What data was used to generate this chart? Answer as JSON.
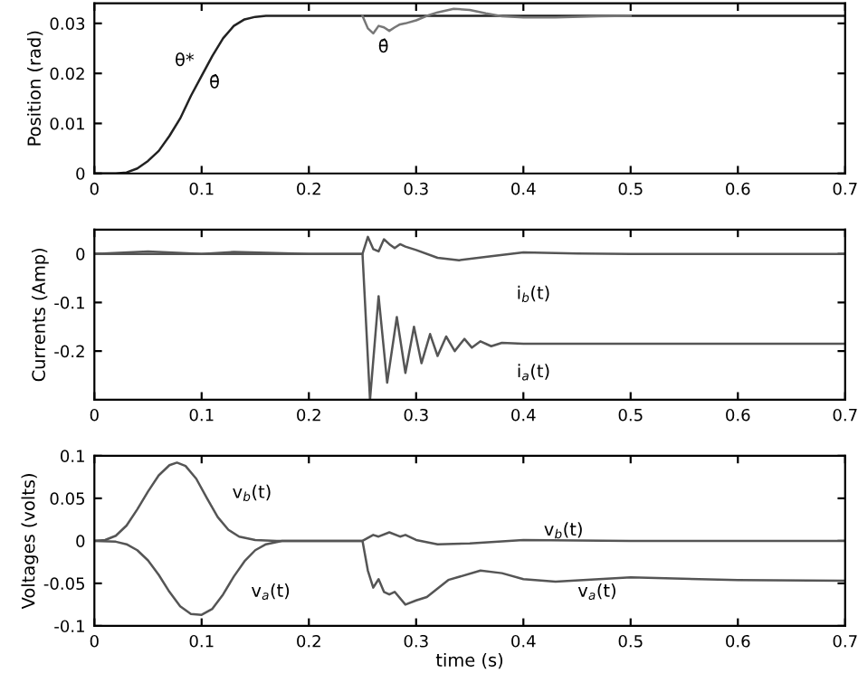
{
  "chart_data": [
    {
      "type": "line",
      "ylabel": "Position (rad)",
      "xlim": [
        0,
        0.7
      ],
      "xticks": [
        0,
        0.1,
        0.2,
        0.3,
        0.4,
        0.5,
        0.6,
        0.7
      ],
      "ylim": [
        0,
        0.034
      ],
      "yticks": [
        0,
        0.01,
        0.02,
        0.03
      ],
      "grid": false,
      "legend": false,
      "series": [
        {
          "color": "#222222",
          "x": [
            0,
            0.02,
            0.03,
            0.04,
            0.05,
            0.06,
            0.07,
            0.08,
            0.09,
            0.1,
            0.11,
            0.12,
            0.13,
            0.14,
            0.15,
            0.16,
            0.18,
            0.2,
            0.3,
            0.4,
            0.5,
            0.6,
            0.7
          ],
          "values": [
            0,
            0,
            0.0002,
            0.001,
            0.0025,
            0.0045,
            0.0075,
            0.011,
            0.0155,
            0.0195,
            0.0235,
            0.027,
            0.0295,
            0.0308,
            0.0313,
            0.0315,
            0.0315,
            0.0315,
            0.0315,
            0.0315,
            0.0315,
            0.0315,
            0.0315
          ]
        },
        {
          "color": "#777777",
          "x": [
            0.25,
            0.255,
            0.26,
            0.265,
            0.27,
            0.275,
            0.28,
            0.285,
            0.29,
            0.3,
            0.31,
            0.32,
            0.335,
            0.35,
            0.365,
            0.38,
            0.4,
            0.43,
            0.47,
            0.5
          ],
          "values": [
            0.0315,
            0.029,
            0.028,
            0.0295,
            0.0292,
            0.0285,
            0.0292,
            0.0298,
            0.03,
            0.0306,
            0.0315,
            0.0322,
            0.0329,
            0.0327,
            0.032,
            0.0314,
            0.0312,
            0.0312,
            0.0314,
            0.0315
          ]
        }
      ],
      "annotations": [
        "θ*",
        "θ̂",
        "θ̂"
      ]
    },
    {
      "type": "line",
      "ylabel": "Currents (Amp)",
      "xlim": [
        0,
        0.7
      ],
      "xticks": [
        0,
        0.1,
        0.2,
        0.3,
        0.4,
        0.5,
        0.6,
        0.7
      ],
      "ylim": [
        -0.3,
        0.05
      ],
      "yticks": [
        -0.2,
        -0.1,
        0
      ],
      "grid": false,
      "legend": false,
      "series": [
        {
          "color": "#555555",
          "x": [
            0,
            0.05,
            0.1,
            0.13,
            0.2,
            0.25,
            0.255,
            0.26,
            0.265,
            0.27,
            0.275,
            0.28,
            0.285,
            0.29,
            0.3,
            0.32,
            0.34,
            0.37,
            0.4,
            0.45,
            0.5,
            0.6,
            0.7
          ],
          "values": [
            0,
            0.005,
            0,
            0.004,
            0,
            0,
            0.035,
            0.01,
            0.005,
            0.03,
            0.02,
            0.012,
            0.02,
            0.015,
            0.008,
            -0.008,
            -0.013,
            -0.005,
            0.003,
            0.001,
            0,
            0,
            0
          ]
        },
        {
          "color": "#555555",
          "x": [
            0,
            0.25,
            0.257,
            0.265,
            0.273,
            0.282,
            0.29,
            0.298,
            0.305,
            0.313,
            0.32,
            0.328,
            0.336,
            0.345,
            0.352,
            0.36,
            0.37,
            0.38,
            0.4,
            0.5,
            0.6,
            0.7
          ],
          "values": [
            0,
            0,
            -0.3,
            -0.087,
            -0.265,
            -0.13,
            -0.245,
            -0.15,
            -0.225,
            -0.165,
            -0.21,
            -0.17,
            -0.2,
            -0.175,
            -0.193,
            -0.18,
            -0.19,
            -0.183,
            -0.185,
            -0.185,
            -0.185,
            -0.185
          ]
        }
      ],
      "annotations": [
        "i$_{b}$(t)",
        "i$_{a}$(t)"
      ]
    },
    {
      "type": "line",
      "xlabel": "time (s)",
      "ylabel": "Voltages (volts)",
      "xlim": [
        0,
        0.7
      ],
      "xticks": [
        0,
        0.1,
        0.2,
        0.3,
        0.4,
        0.5,
        0.6,
        0.7
      ],
      "ylim": [
        -0.1,
        0.1
      ],
      "yticks": [
        -0.1,
        -0.05,
        0,
        0.05,
        0.1
      ],
      "grid": false,
      "legend": false,
      "series": [
        {
          "color": "#555555",
          "x": [
            0,
            0.01,
            0.02,
            0.03,
            0.04,
            0.05,
            0.06,
            0.07,
            0.077,
            0.085,
            0.095,
            0.105,
            0.115,
            0.125,
            0.135,
            0.15,
            0.17,
            0.2,
            0.25,
            0.26,
            0.265,
            0.275,
            0.285,
            0.29,
            0.3,
            0.32,
            0.35,
            0.4,
            0.5,
            0.6,
            0.7
          ],
          "values": [
            0,
            0.001,
            0.006,
            0.018,
            0.037,
            0.058,
            0.077,
            0.089,
            0.092,
            0.088,
            0.073,
            0.05,
            0.028,
            0.013,
            0.005,
            0.001,
            0,
            0,
            0,
            0.007,
            0.005,
            0.01,
            0.005,
            0.007,
            0.001,
            -0.004,
            -0.003,
            0.001,
            0,
            0,
            0
          ]
        },
        {
          "color": "#555555",
          "x": [
            0,
            0.02,
            0.03,
            0.04,
            0.05,
            0.06,
            0.07,
            0.08,
            0.09,
            0.1,
            0.11,
            0.12,
            0.13,
            0.14,
            0.15,
            0.16,
            0.175,
            0.2,
            0.25,
            0.255,
            0.26,
            0.265,
            0.27,
            0.275,
            0.28,
            0.29,
            0.3,
            0.31,
            0.33,
            0.36,
            0.38,
            0.4,
            0.43,
            0.5,
            0.6,
            0.7
          ],
          "values": [
            0,
            -0.001,
            -0.004,
            -0.011,
            -0.023,
            -0.04,
            -0.06,
            -0.077,
            -0.086,
            -0.087,
            -0.08,
            -0.063,
            -0.042,
            -0.024,
            -0.011,
            -0.004,
            0,
            0,
            0,
            -0.035,
            -0.055,
            -0.045,
            -0.06,
            -0.063,
            -0.06,
            -0.075,
            -0.07,
            -0.066,
            -0.046,
            -0.035,
            -0.038,
            -0.045,
            -0.048,
            -0.043,
            -0.046,
            -0.047
          ]
        }
      ],
      "annotations": [
        "v$_{b}$(t)",
        "v$_{a}$(t)",
        "v$_{b}$(t)",
        "v$_{a}$(t)"
      ]
    }
  ]
}
